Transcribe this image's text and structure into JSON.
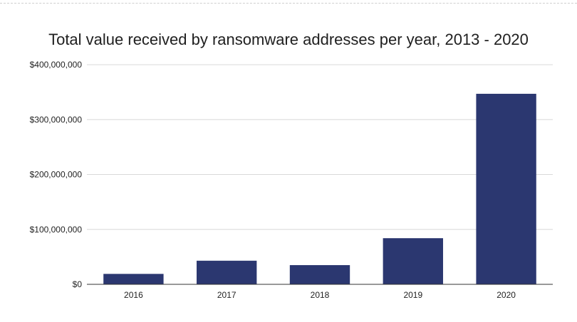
{
  "chart_data": {
    "type": "bar",
    "title": "Total value received by ransomware addresses per year, 2013 - 2020",
    "xlabel": "",
    "ylabel": "",
    "categories": [
      "2016",
      "2017",
      "2018",
      "2019",
      "2020"
    ],
    "values": [
      19000000,
      43000000,
      35000000,
      84000000,
      347000000
    ],
    "ylim": [
      0,
      400000000
    ],
    "yticks": [
      {
        "value": 0,
        "label": "$0"
      },
      {
        "value": 100000000,
        "label": "$100,000,000"
      },
      {
        "value": 200000000,
        "label": "$200,000,000"
      },
      {
        "value": 300000000,
        "label": "$300,000,000"
      },
      {
        "value": 400000000,
        "label": "$400,000,000"
      }
    ],
    "grid": true,
    "legend": "none",
    "colors": {
      "bar": "#2b3770",
      "grid": "#d9d9d9",
      "axis": "#333333",
      "text": "#222222"
    }
  }
}
